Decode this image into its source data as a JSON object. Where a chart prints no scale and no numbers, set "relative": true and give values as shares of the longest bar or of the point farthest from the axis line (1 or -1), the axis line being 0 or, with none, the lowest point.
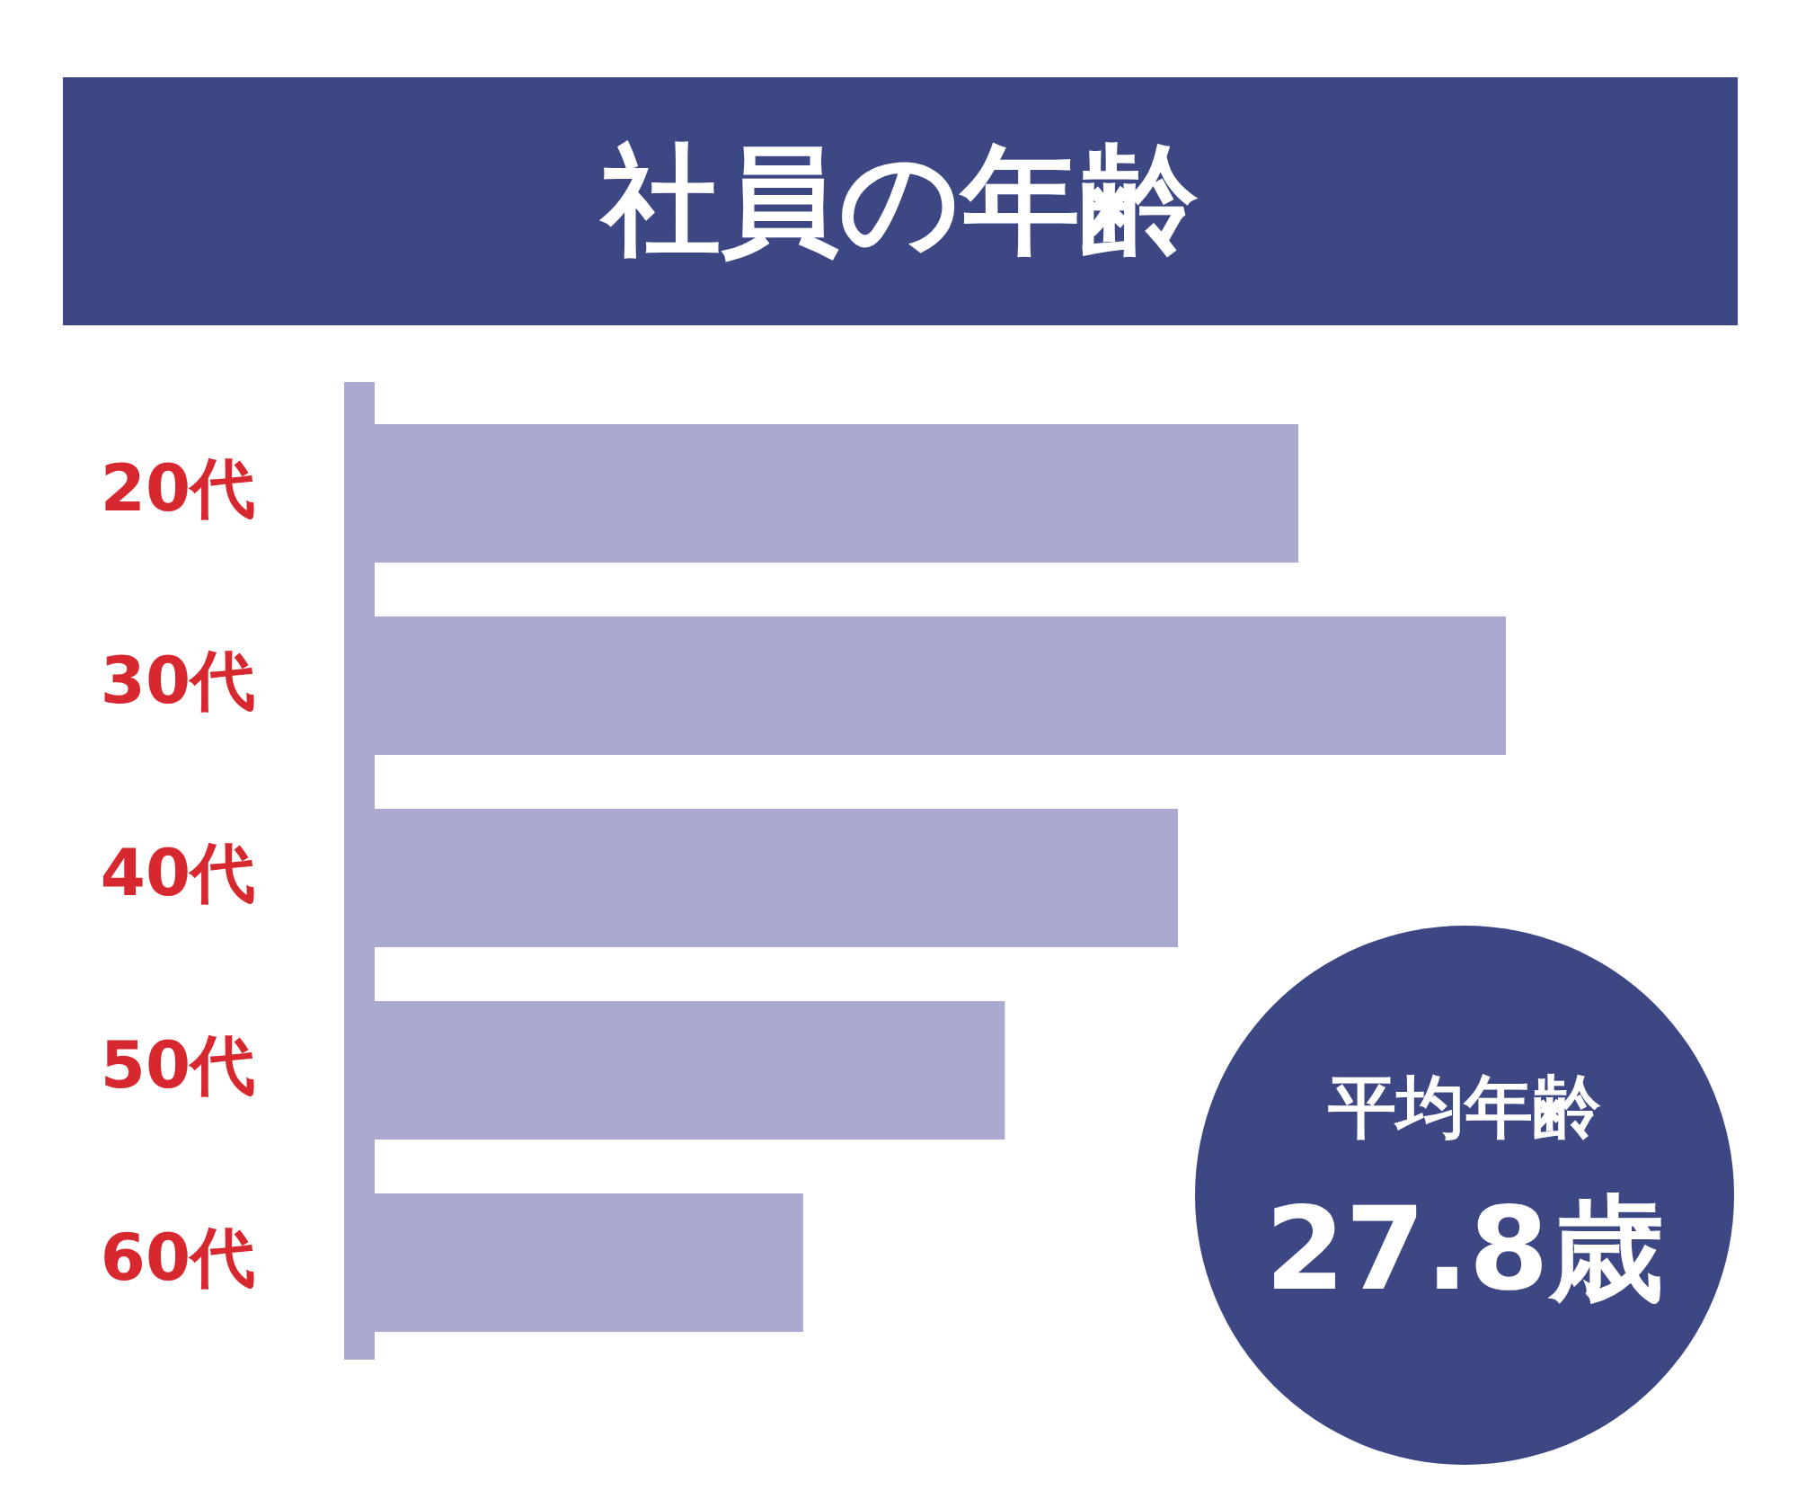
{
  "chart_data": {
    "type": "bar",
    "orientation": "horizontal",
    "relative": true,
    "title": "社員の年齢",
    "categories": [
      "20代",
      "30代",
      "40代",
      "50代",
      "60代"
    ],
    "values": [
      0.819,
      1,
      0.714,
      0.563,
      0.387
    ],
    "color": "#aaa9cf",
    "grid": false,
    "legend": false,
    "annotations": [
      "平均年齢",
      "27.8歳"
    ]
  }
}
